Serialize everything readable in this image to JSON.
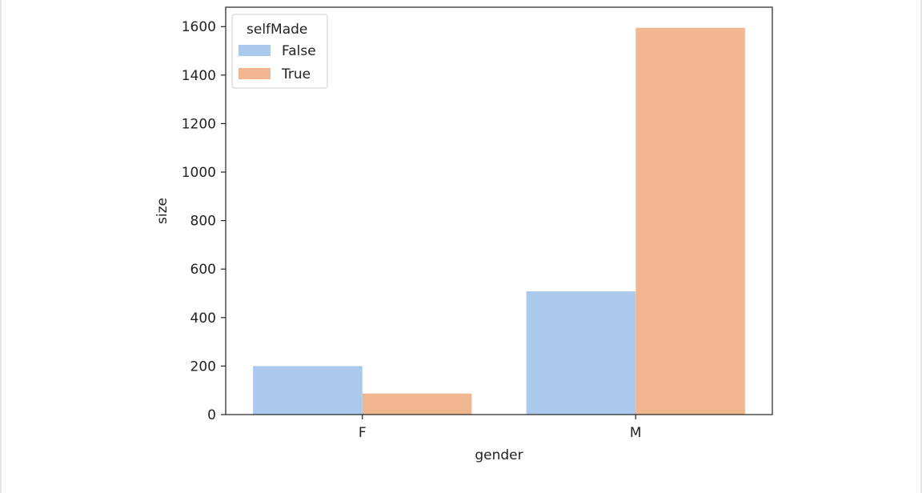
{
  "chart_data": {
    "type": "bar",
    "categories": [
      "F",
      "M"
    ],
    "series": [
      {
        "name": "False",
        "values": [
          200,
          508
        ],
        "color": "#abc9ed"
      },
      {
        "name": "True",
        "values": [
          87,
          1595
        ],
        "color": "#f0b690"
      }
    ],
    "title": "",
    "xlabel": "gender",
    "ylabel": "size",
    "ylim": [
      0,
      1680
    ],
    "yticks": [
      0,
      200,
      400,
      600,
      800,
      1000,
      1200,
      1400,
      1600
    ],
    "legend": {
      "title": "selfMade",
      "placement": "top-left"
    },
    "grid": false
  }
}
